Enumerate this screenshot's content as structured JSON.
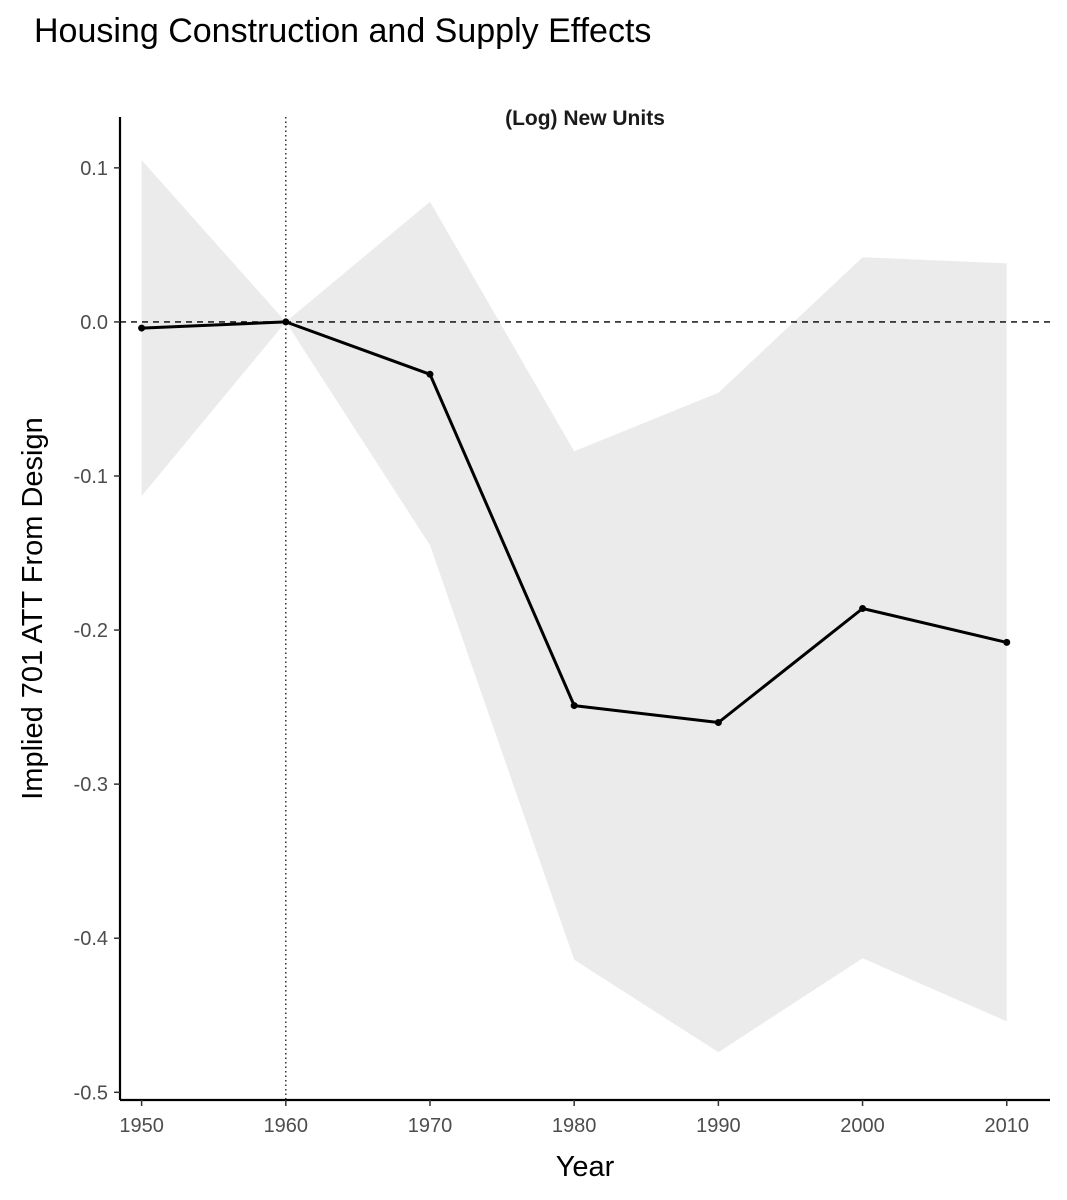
{
  "title": "Housing Construction and Supply Effects",
  "chart_data": {
    "type": "line",
    "title": "Housing Construction and Supply Effects",
    "panel_title": "(Log) New Units",
    "xlabel": "Year",
    "ylabel": "Implied 701 ATT From Design",
    "x": [
      1950,
      1960,
      1970,
      1980,
      1990,
      2000,
      2010
    ],
    "x_ticks": [
      "1950",
      "1960",
      "1970",
      "1980",
      "1990",
      "2000",
      "2010"
    ],
    "y_ticks": [
      0.1,
      0.0,
      -0.1,
      -0.2,
      -0.3,
      -0.4,
      -0.5
    ],
    "y_tick_labels": [
      "0.1",
      "0.0",
      "-0.1",
      "-0.2",
      "-0.3",
      "-0.4",
      "-0.5"
    ],
    "xlim": [
      1948.5,
      2013
    ],
    "ylim": [
      -0.505,
      0.133
    ],
    "series": [
      {
        "values": [
          -0.004,
          0.0,
          -0.034,
          -0.249,
          -0.26,
          -0.186,
          -0.208
        ],
        "ci_upper": [
          0.105,
          0.0,
          0.078,
          -0.084,
          -0.046,
          0.042,
          0.038
        ],
        "ci_lower": [
          -0.113,
          0.0,
          -0.145,
          -0.414,
          -0.474,
          -0.413,
          -0.454
        ],
        "color": "#000000"
      }
    ],
    "reference_lines": {
      "horizontal_y": 0.0,
      "vertical_x": 1960
    },
    "ribbon_color": "#ebebeb",
    "grid": false
  }
}
